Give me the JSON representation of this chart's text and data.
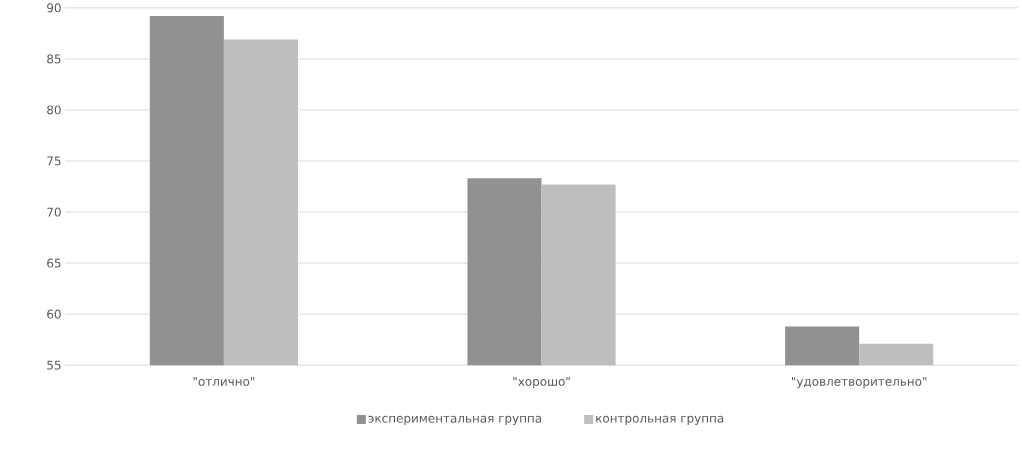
{
  "chart_data": {
    "type": "bar",
    "categories": [
      "\"отлично\"",
      "\"хорошо\"",
      "\"удовлетворительно\""
    ],
    "series": [
      {
        "name": "экспериментальная группа",
        "color": "#919191",
        "values": [
          89.2,
          73.3,
          58.8
        ]
      },
      {
        "name": "контрольная группа",
        "color": "#bebebe",
        "values": [
          86.9,
          72.7,
          57.1
        ]
      }
    ],
    "ylim": [
      55,
      90
    ],
    "yticks": [
      55,
      60,
      65,
      70,
      75,
      80,
      85,
      90
    ],
    "grid": "y",
    "legend": "bottom"
  }
}
